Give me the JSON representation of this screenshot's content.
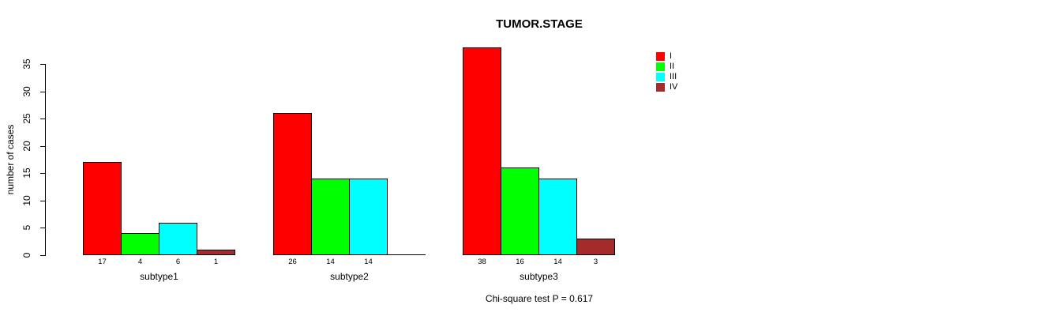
{
  "chart_data": {
    "type": "bar",
    "title": "TUMOR.STAGE",
    "xlabel": "",
    "ylabel": "number of cases",
    "categories": [
      "subtype1",
      "subtype2",
      "subtype3"
    ],
    "series": [
      {
        "name": "I",
        "color": "#FF0000",
        "values": [
          17,
          26,
          38
        ]
      },
      {
        "name": "II",
        "color": "#00FF00",
        "values": [
          4,
          14,
          16
        ]
      },
      {
        "name": "III",
        "color": "#00FFFF",
        "values": [
          6,
          14,
          14
        ]
      },
      {
        "name": "IV",
        "color": "#A52A2A",
        "values": [
          1,
          0,
          3
        ]
      }
    ],
    "ylim": [
      0,
      35
    ],
    "yticks": [
      0,
      5,
      10,
      15,
      20,
      25,
      30,
      35
    ],
    "grid": false,
    "bar_value_labels_shown": true,
    "hide_zero_value_labels": true,
    "bar_border_color": "#000000",
    "legend_position": "top-right",
    "annotation": "Chi-square test P = 0.617"
  },
  "legend": {
    "entries": [
      "I",
      "II",
      "III",
      "IV"
    ]
  }
}
